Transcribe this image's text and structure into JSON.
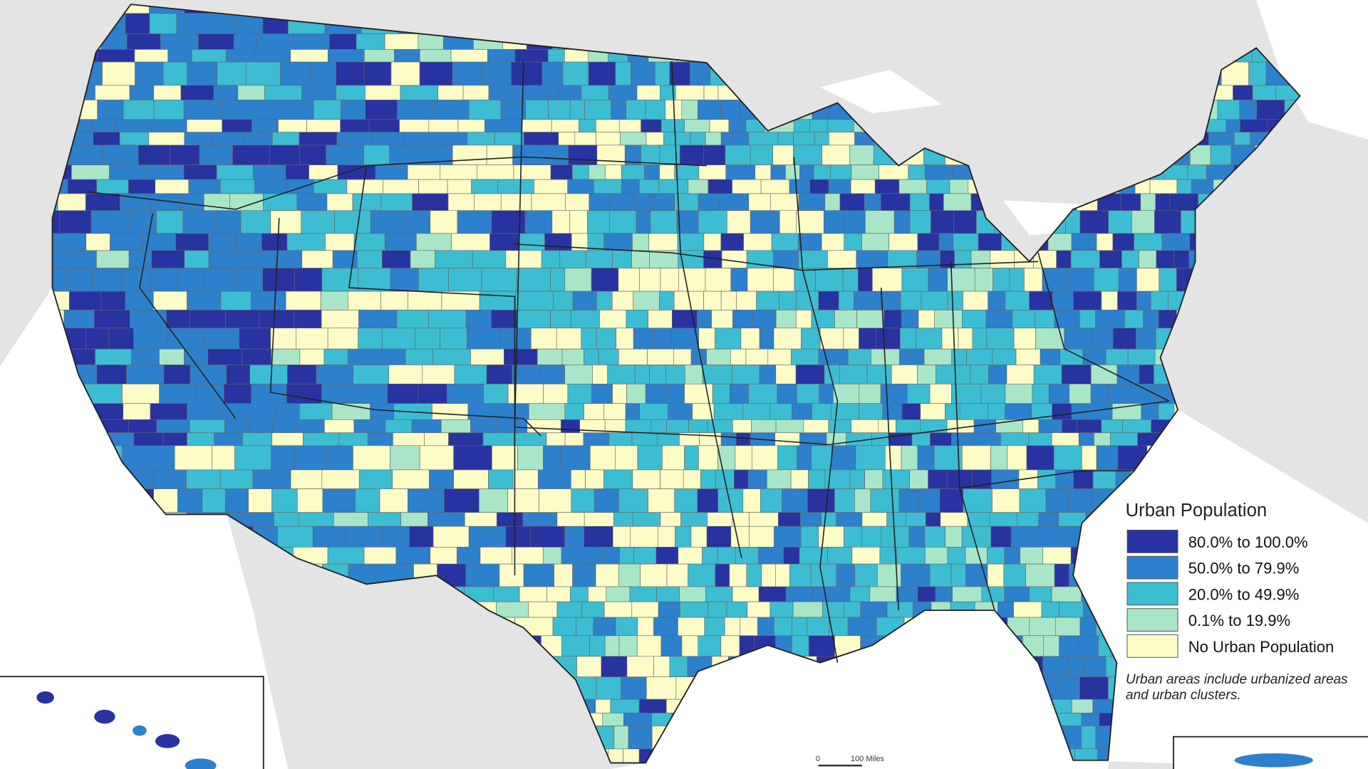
{
  "legend": {
    "title": "Urban Population",
    "items": [
      {
        "label": "80.0% to 100.0%",
        "color": "#2832a0"
      },
      {
        "label": "50.0% to 79.9%",
        "color": "#2d80cc"
      },
      {
        "label": "20.0% to 49.9%",
        "color": "#3cbdd2"
      },
      {
        "label": "0.1% to 19.9%",
        "color": "#a9e6c8"
      },
      {
        "label": "No Urban Population",
        "color": "#fdfcc6"
      }
    ]
  },
  "note": "Urban areas include urbanized areas and urban clusters.",
  "scale_bar": {
    "start": "0",
    "end": "100 Miles"
  }
}
